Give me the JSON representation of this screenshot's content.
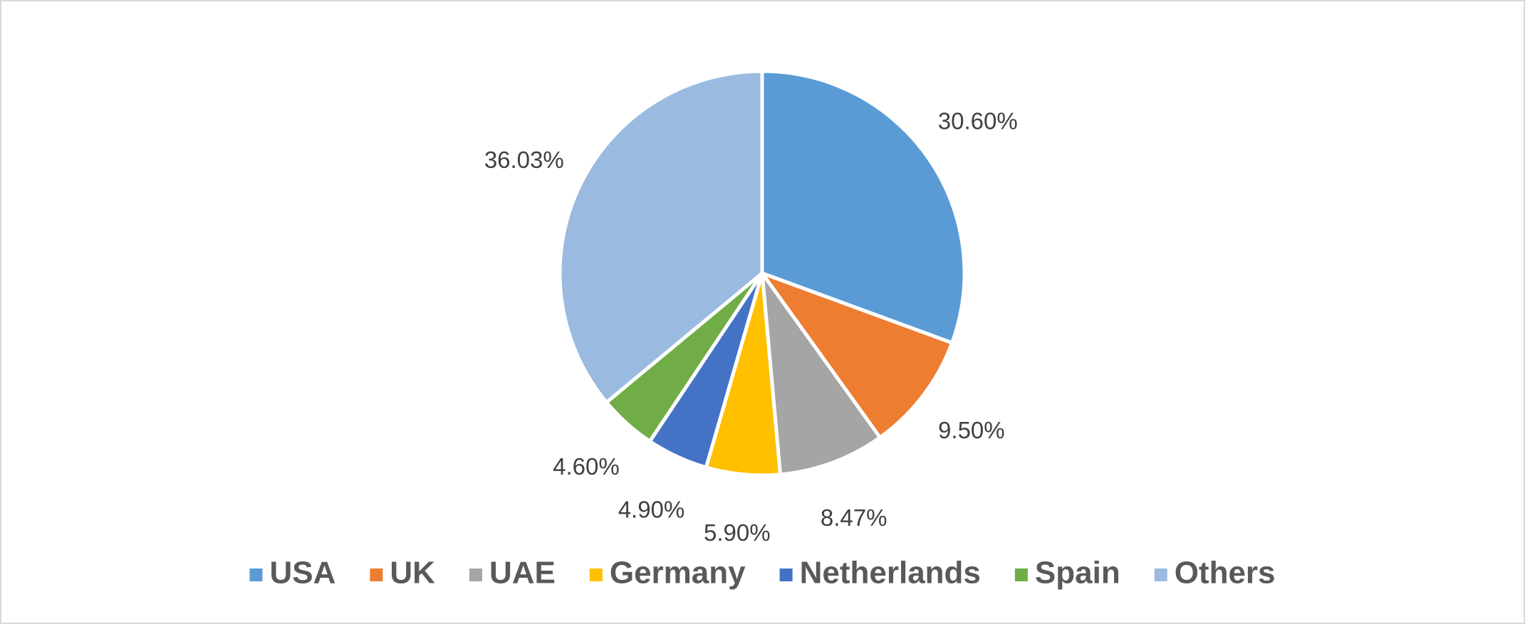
{
  "chart_data": {
    "type": "pie",
    "categories": [
      "USA",
      "UK",
      "UAE",
      "Germany",
      "Netherlands",
      "Spain",
      "Others"
    ],
    "values": [
      30.6,
      9.5,
      8.47,
      5.9,
      4.9,
      4.6,
      36.03
    ],
    "value_labels": [
      "30.60%",
      "9.50%",
      "8.47%",
      "5.90%",
      "4.90%",
      "4.60%",
      "36.03%"
    ],
    "colors": [
      "#5b9bd5",
      "#ed7d31",
      "#a5a5a5",
      "#ffc000",
      "#4472c4",
      "#70ad47",
      "#9bbae0"
    ],
    "legend": "bottom"
  }
}
